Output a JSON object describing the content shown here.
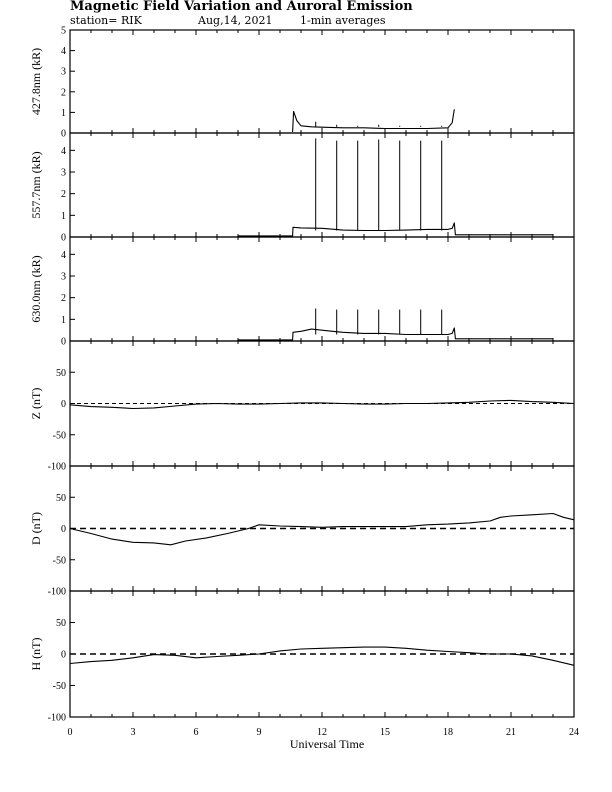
{
  "header": {
    "title": "Magnetic Field Variation and Auroral Emission",
    "station": "station= RIK",
    "date": "Aug,14, 2021",
    "averaging": "1-min averages"
  },
  "chart_data": [
    {
      "type": "line",
      "ylabel": "427.8nm (kR)",
      "xlim": [
        0,
        24
      ],
      "ylim": [
        0,
        5
      ],
      "yticks": [
        "0",
        "1",
        "2",
        "3",
        "4",
        "5"
      ],
      "ytick_values": [
        0,
        1,
        2,
        3,
        4,
        5
      ],
      "x": [
        10.6,
        10.65,
        10.8,
        11.0,
        11.5,
        12.0,
        13.0,
        14.0,
        15.0,
        16.0,
        17.0,
        18.0,
        18.2,
        18.3
      ],
      "y": [
        0.05,
        1.05,
        0.6,
        0.35,
        0.3,
        0.28,
        0.25,
        0.25,
        0.22,
        0.22,
        0.22,
        0.25,
        0.5,
        1.15
      ],
      "spikes": [
        {
          "x": 11.7,
          "y": 0.55
        },
        {
          "x": 12.7,
          "y": 0.4
        },
        {
          "x": 13.7,
          "y": 0.35
        },
        {
          "x": 14.7,
          "y": 0.4
        },
        {
          "x": 15.7,
          "y": 0.35
        },
        {
          "x": 16.7,
          "y": 0.35
        },
        {
          "x": 17.7,
          "y": 0.35
        }
      ]
    },
    {
      "type": "line",
      "ylabel": "557.7nm (kR)",
      "xlim": [
        0,
        24
      ],
      "ylim": [
        0,
        4.8
      ],
      "yticks": [
        "0",
        "1",
        "2",
        "3",
        "4"
      ],
      "ytick_values": [
        0,
        1,
        2,
        3,
        4
      ],
      "x": [
        8.0,
        10.6,
        10.62,
        11.0,
        12.0,
        13.0,
        14.0,
        15.0,
        16.0,
        17.0,
        18.0,
        18.2,
        18.3,
        18.35,
        23.0
      ],
      "y": [
        0.05,
        0.05,
        0.45,
        0.42,
        0.4,
        0.32,
        0.3,
        0.3,
        0.32,
        0.35,
        0.35,
        0.4,
        0.65,
        0.1,
        0.1
      ],
      "spikes": [
        {
          "x": 11.7,
          "y": 4.55
        },
        {
          "x": 12.7,
          "y": 4.45
        },
        {
          "x": 13.7,
          "y": 4.45
        },
        {
          "x": 14.7,
          "y": 4.5
        },
        {
          "x": 15.7,
          "y": 4.45
        },
        {
          "x": 16.7,
          "y": 4.45
        },
        {
          "x": 17.7,
          "y": 4.45
        }
      ]
    },
    {
      "type": "line",
      "ylabel": "630.0nm (kR)",
      "xlim": [
        0,
        24
      ],
      "ylim": [
        0,
        4.8
      ],
      "yticks": [
        "0",
        "1",
        "2",
        "3",
        "4"
      ],
      "ytick_values": [
        0,
        1,
        2,
        3,
        4
      ],
      "x": [
        8.0,
        10.6,
        10.62,
        11.0,
        11.5,
        12.0,
        12.5,
        13.0,
        14.0,
        15.0,
        16.0,
        17.0,
        18.0,
        18.2,
        18.3,
        18.35,
        23.0
      ],
      "y": [
        0.05,
        0.05,
        0.4,
        0.45,
        0.55,
        0.5,
        0.45,
        0.4,
        0.35,
        0.35,
        0.3,
        0.3,
        0.3,
        0.35,
        0.6,
        0.1,
        0.1
      ],
      "spikes": [
        {
          "x": 11.7,
          "y": 1.5
        },
        {
          "x": 12.7,
          "y": 1.45
        },
        {
          "x": 13.7,
          "y": 1.45
        },
        {
          "x": 14.7,
          "y": 1.45
        },
        {
          "x": 15.7,
          "y": 1.45
        },
        {
          "x": 16.7,
          "y": 1.45
        },
        {
          "x": 17.7,
          "y": 1.45
        }
      ]
    },
    {
      "type": "line",
      "ylabel": "Z (nT)",
      "xlim": [
        0,
        24
      ],
      "ylim": [
        -100,
        100
      ],
      "yticks": [
        "50",
        "0",
        "-50",
        "-100"
      ],
      "ytick_values": [
        50,
        0,
        -50,
        -100
      ],
      "reference_line": 0,
      "x": [
        0,
        1,
        2,
        3,
        4,
        5,
        6,
        7,
        8,
        9,
        10,
        11,
        12,
        13,
        14,
        15,
        16,
        17,
        18,
        19,
        20,
        21,
        22,
        23,
        24
      ],
      "y": [
        -2,
        -5,
        -6,
        -8,
        -7,
        -4,
        -1,
        0,
        -1,
        -1,
        0,
        1,
        1,
        0,
        -1,
        -1,
        0,
        0,
        1,
        2,
        4,
        5,
        3,
        2,
        0
      ]
    },
    {
      "type": "line",
      "ylabel": "D (nT)",
      "xlim": [
        0,
        24
      ],
      "ylim": [
        -100,
        100
      ],
      "yticks": [
        "50",
        "0",
        "-50",
        "-100"
      ],
      "ytick_values": [
        50,
        0,
        -50,
        -100
      ],
      "reference_line": 0,
      "x": [
        0,
        1,
        2,
        3,
        4,
        4.8,
        5.5,
        6.5,
        7.5,
        8.5,
        9.0,
        10,
        11,
        12,
        13,
        14,
        15,
        16,
        17,
        18,
        19,
        20,
        20.5,
        21,
        22,
        23,
        23.5,
        24
      ],
      "y": [
        0,
        -8,
        -17,
        -22,
        -23,
        -26,
        -20,
        -15,
        -8,
        0,
        6,
        4,
        3,
        2,
        3,
        3,
        3,
        3,
        6,
        7,
        9,
        12,
        18,
        20,
        22,
        24,
        18,
        14
      ]
    },
    {
      "type": "line",
      "ylabel": "H (nT)",
      "xlim": [
        0,
        24
      ],
      "ylim": [
        -100,
        100
      ],
      "yticks": [
        "50",
        "0",
        "-50",
        "-100"
      ],
      "ytick_values": [
        50,
        0,
        -50,
        -100
      ],
      "reference_line": 0,
      "x": [
        0,
        1,
        2,
        3,
        4,
        5,
        6,
        7,
        8,
        9,
        10,
        11,
        12,
        13,
        14,
        15,
        16,
        17,
        18,
        19,
        20,
        21,
        22,
        23,
        24
      ],
      "y": [
        -15,
        -12,
        -10,
        -6,
        -1,
        -2,
        -6,
        -4,
        -2,
        0,
        5,
        8,
        9,
        10,
        11,
        11,
        9,
        6,
        4,
        2,
        0,
        0,
        -3,
        -10,
        -18
      ]
    }
  ],
  "xaxis": {
    "label": "Universal Time",
    "ticks": [
      "0",
      "3",
      "6",
      "9",
      "12",
      "15",
      "18",
      "21",
      "24"
    ],
    "tick_values": [
      0,
      3,
      6,
      9,
      12,
      15,
      18,
      21,
      24
    ]
  }
}
